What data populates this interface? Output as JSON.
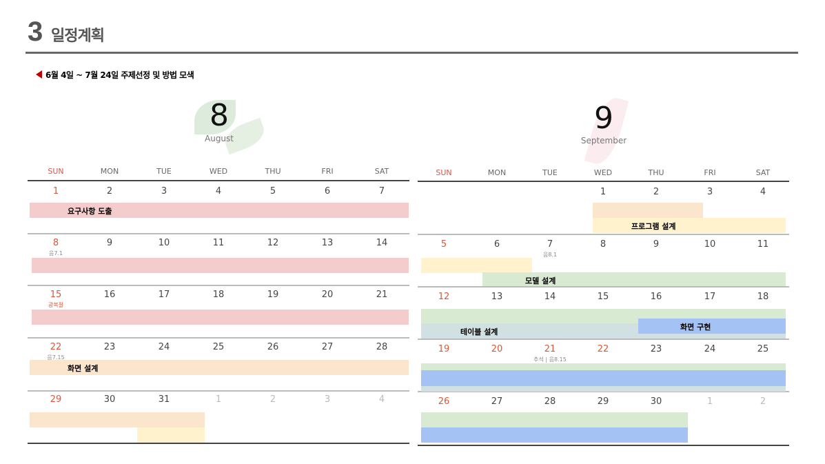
{
  "header": {
    "number": "3",
    "title": "일정계획",
    "subtitle": "6월 4일 ~ 7월 24일 주제선정 및 방법 모색"
  },
  "colors": {
    "pink": "#f4cccc",
    "peach": "#fce5cd",
    "yellow": "#fff2cc",
    "green": "#d9ead3",
    "blue": "#a4c2f4",
    "grayblue": "#d0e0e3",
    "accent": "#c00000"
  },
  "weekdays": [
    "SUN",
    "MON",
    "TUE",
    "WED",
    "THU",
    "FRI",
    "SAT"
  ],
  "august": {
    "number": "8",
    "name": "August",
    "weeks": [
      [
        {
          "d": "1"
        },
        {
          "d": "2"
        },
        {
          "d": "3"
        },
        {
          "d": "4"
        },
        {
          "d": "5"
        },
        {
          "d": "6"
        },
        {
          "d": "7"
        }
      ],
      [
        {
          "d": "8",
          "sub": "음7.1"
        },
        {
          "d": "9"
        },
        {
          "d": "10"
        },
        {
          "d": "11"
        },
        {
          "d": "12"
        },
        {
          "d": "13"
        },
        {
          "d": "14"
        }
      ],
      [
        {
          "d": "15",
          "sub": "광복절",
          "subred": true
        },
        {
          "d": "16"
        },
        {
          "d": "17"
        },
        {
          "d": "18"
        },
        {
          "d": "19"
        },
        {
          "d": "20"
        },
        {
          "d": "21"
        }
      ],
      [
        {
          "d": "22",
          "sub": "음7.15"
        },
        {
          "d": "23"
        },
        {
          "d": "24"
        },
        {
          "d": "25"
        },
        {
          "d": "26"
        },
        {
          "d": "27"
        },
        {
          "d": "28"
        }
      ],
      [
        {
          "d": "29"
        },
        {
          "d": "30"
        },
        {
          "d": "31"
        },
        {
          "d": "1",
          "muted": true
        },
        {
          "d": "2",
          "muted": true
        },
        {
          "d": "3",
          "muted": true
        },
        {
          "d": "4",
          "muted": true
        }
      ]
    ],
    "bars": [
      {
        "label": "요구사항 도출",
        "color": "pink"
      },
      {
        "label": "",
        "color": "pink"
      },
      {
        "label": "",
        "color": "pink"
      },
      {
        "label": "화면 설계",
        "color": "peach"
      },
      {
        "label": "",
        "color": "peach"
      },
      {
        "label": "",
        "color": "yellow"
      }
    ]
  },
  "september": {
    "number": "9",
    "name": "September",
    "weeks": [
      [
        {
          "d": ""
        },
        {
          "d": ""
        },
        {
          "d": ""
        },
        {
          "d": "1"
        },
        {
          "d": "2"
        },
        {
          "d": "3"
        },
        {
          "d": "4"
        }
      ],
      [
        {
          "d": "5"
        },
        {
          "d": "6"
        },
        {
          "d": "7",
          "sub": "음8.1"
        },
        {
          "d": "8"
        },
        {
          "d": "9"
        },
        {
          "d": "10"
        },
        {
          "d": "11"
        }
      ],
      [
        {
          "d": "12"
        },
        {
          "d": "13"
        },
        {
          "d": "14"
        },
        {
          "d": "15"
        },
        {
          "d": "16"
        },
        {
          "d": "17"
        },
        {
          "d": "18"
        }
      ],
      [
        {
          "d": "19"
        },
        {
          "d": "20",
          "red": true
        },
        {
          "d": "21",
          "red": true,
          "sub": "추석 | 음8.15"
        },
        {
          "d": "22",
          "red": true
        },
        {
          "d": "23"
        },
        {
          "d": "24"
        },
        {
          "d": "25"
        }
      ],
      [
        {
          "d": "26"
        },
        {
          "d": "27"
        },
        {
          "d": "28"
        },
        {
          "d": "29"
        },
        {
          "d": "30"
        },
        {
          "d": "1",
          "muted": true
        },
        {
          "d": "2",
          "muted": true
        }
      ]
    ],
    "bars": [
      {
        "label": "",
        "color": "peach"
      },
      {
        "label": "프로그램 설계",
        "color": "yellow"
      },
      {
        "label": "",
        "color": "yellow"
      },
      {
        "label": "모델 설계",
        "color": "green"
      },
      {
        "label": "",
        "color": "green"
      },
      {
        "label": "테이블 설계",
        "color": "grayblue"
      },
      {
        "label": "화면 구현",
        "color": "blue"
      },
      {
        "label": "",
        "color": "green"
      },
      {
        "label": "",
        "color": "blue"
      },
      {
        "label": "",
        "color": "grayblue"
      },
      {
        "label": "",
        "color": "green"
      },
      {
        "label": "",
        "color": "blue"
      }
    ]
  }
}
